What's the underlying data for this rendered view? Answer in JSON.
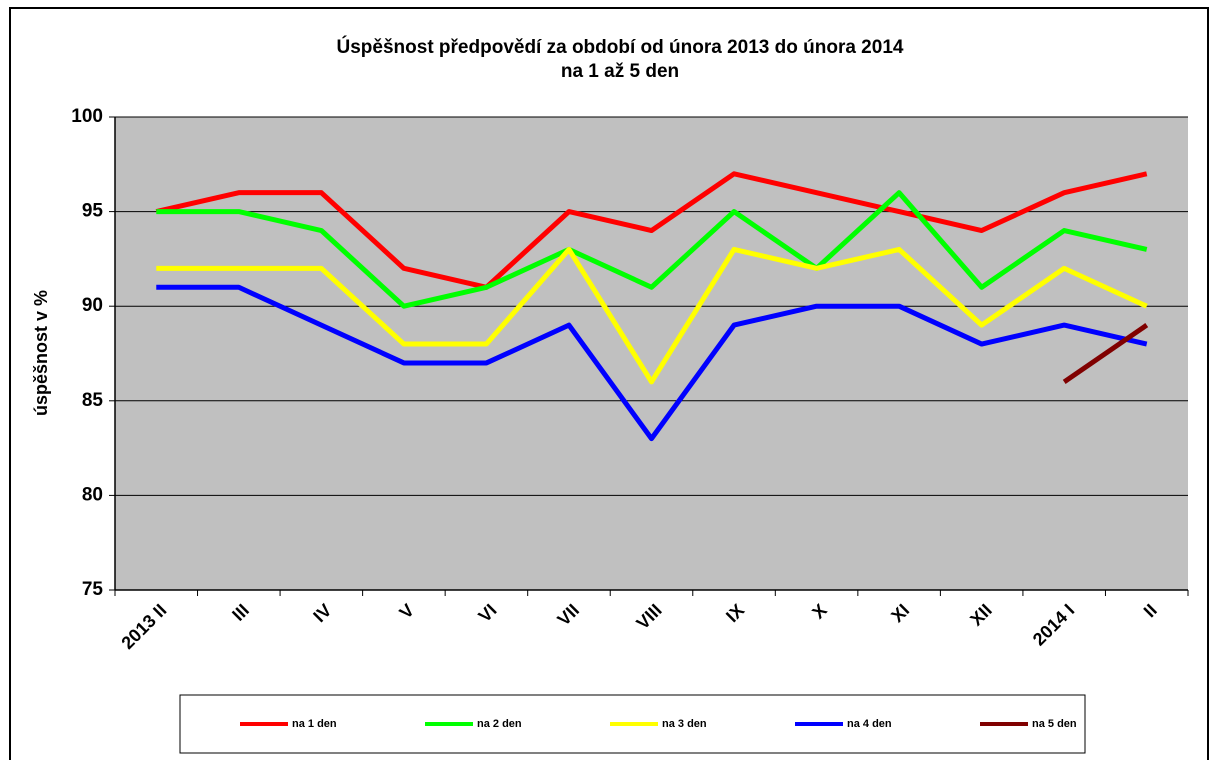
{
  "chart_data": {
    "type": "line",
    "title": "Úspěšnost předpovědí za období od února 2013 do února 2014",
    "subtitle": "na 1 až 5 den",
    "y_label": "úspěšnost v %",
    "categories": [
      "2013 II",
      "III",
      "IV",
      "V",
      "VI",
      "VII",
      "VIII",
      "IX",
      "X",
      "XI",
      "XII",
      "2014 I",
      "II"
    ],
    "series": [
      {
        "name": "na 1 den",
        "color": "#ff0000",
        "values": [
          95,
          96,
          96,
          92,
          91,
          95,
          94,
          97,
          96,
          95,
          94,
          96,
          97
        ]
      },
      {
        "name": "na 2 den",
        "color": "#00ff00",
        "values": [
          95,
          95,
          94,
          90,
          91,
          93,
          91,
          95,
          92,
          96,
          91,
          94,
          93
        ]
      },
      {
        "name": "na 3 den",
        "color": "#ffff00",
        "values": [
          92,
          92,
          92,
          88,
          88,
          93,
          86,
          93,
          92,
          93,
          89,
          92,
          90
        ]
      },
      {
        "name": "na 4 den",
        "color": "#0000ff",
        "values": [
          91,
          91,
          89,
          87,
          87,
          89,
          83,
          89,
          90,
          90,
          88,
          89,
          88
        ]
      },
      {
        "name": "na 5 den",
        "color": "#800000",
        "values": [
          null,
          null,
          null,
          null,
          null,
          null,
          null,
          null,
          null,
          null,
          null,
          86,
          89
        ]
      }
    ],
    "ylim": [
      75,
      100
    ],
    "yticks": [
      75,
      80,
      85,
      90,
      95,
      100
    ],
    "grid": true,
    "plot_background": "#c0c0c0",
    "legend": "bottom"
  }
}
